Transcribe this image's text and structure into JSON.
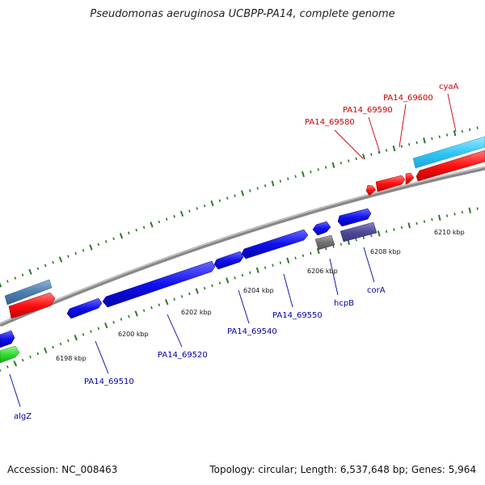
{
  "header": {
    "title": "Pseudomonas aeruginosa UCBPP-PA14, complete genome"
  },
  "footer": {
    "accession_label": "Accession:",
    "accession": "NC_008463",
    "topology_label": "Topology:",
    "topology": "circular",
    "length_label": "Length:",
    "length": "6,537,648 bp",
    "genes_label": "Genes:",
    "genes": "5,964"
  },
  "colors": {
    "reverse_label": "#cc0000",
    "forward_label": "#0000aa",
    "backbone": "#888888",
    "tick": "#2a7a2a"
  },
  "scale": {
    "unit": "kbp",
    "ticks": [
      "6198 kbp",
      "6200 kbp",
      "6202 kbp",
      "6204 kbp",
      "6206 kbp",
      "6208 kbp",
      "6210 kbp"
    ]
  },
  "gene_labels": {
    "reverse": [
      "PA14_69580",
      "PA14_69590",
      "PA14_69600",
      "cyaA"
    ],
    "forward": [
      "algZ",
      "PA14_69510",
      "PA14_69520",
      "PA14_69540",
      "PA14_69550",
      "hcpB",
      "corA"
    ]
  }
}
